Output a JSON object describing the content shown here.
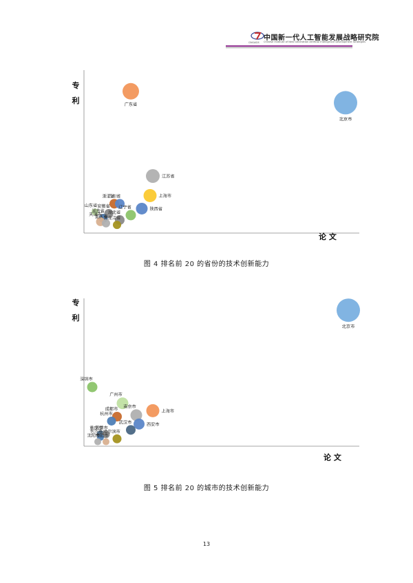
{
  "header": {
    "title": "中国新一代人工智能发展战略研究院",
    "subtitle": "Chinese Institute of New Generation Artificial Intelligence Development Strategies",
    "logo_text": "CINGAIDS"
  },
  "colors": {
    "blue": "#7ab0e0",
    "orange": "#f2965a",
    "gray": "#b0b0b0",
    "yellow": "#fbc92f",
    "green": "#8cc46a",
    "darkblue": "#4f7fb6",
    "midblue": "#5b86c8",
    "olive": "#a49220",
    "lightgreen": "#c0e0a2",
    "darkgray": "#8a8a8a",
    "darkorange": "#c76a2c",
    "tan": "#d8b090",
    "slate": "#4a6784"
  },
  "chart_data": [
    {
      "type": "scatter",
      "title": "",
      "xlabel": "论 文",
      "ylabel": "专利",
      "xlim": [
        0,
        100
      ],
      "ylim": [
        0,
        100
      ],
      "grid": false,
      "points": [
        {
          "name": "北京市",
          "x": 95,
          "y": 80,
          "size": 17,
          "color": "blue"
        },
        {
          "name": "广东省",
          "x": 17,
          "y": 87,
          "size": 12,
          "color": "orange"
        },
        {
          "name": "江苏省",
          "x": 25,
          "y": 35,
          "size": 10,
          "color": "gray"
        },
        {
          "name": "上海市",
          "x": 24,
          "y": 23,
          "size": 9.5,
          "color": "yellow"
        },
        {
          "name": "浙江省",
          "x": 11,
          "y": 18,
          "size": 7,
          "color": "darkorange"
        },
        {
          "name": "四川省",
          "x": 13,
          "y": 18,
          "size": 7,
          "color": "midblue"
        },
        {
          "name": "陕西省",
          "x": 21,
          "y": 15,
          "size": 8.5,
          "color": "midblue"
        },
        {
          "name": "山东省",
          "x": 4,
          "y": 13,
          "size": 5,
          "color": "lightgreen"
        },
        {
          "name": "安徽省",
          "x": 9,
          "y": 12,
          "size": 6.5,
          "color": "darkgray"
        },
        {
          "name": "辽宁省",
          "x": 17,
          "y": 11,
          "size": 7.5,
          "color": "green"
        },
        {
          "name": "湖南省",
          "x": 7,
          "y": 9,
          "size": 6.5,
          "color": "darkblue"
        },
        {
          "name": "天津市",
          "x": 6,
          "y": 7,
          "size": 6.5,
          "color": "tan"
        },
        {
          "name": "湖北省",
          "x": 13,
          "y": 8,
          "size": 7,
          "color": "darkgray"
        },
        {
          "name": "重庆市",
          "x": 8,
          "y": 6,
          "size": 6,
          "color": "gray"
        },
        {
          "name": "黑龙江省",
          "x": 12,
          "y": 5,
          "size": 6,
          "color": "olive"
        }
      ],
      "caption": "图 4   排名前 20 的省份的技术创新能力"
    },
    {
      "type": "scatter",
      "title": "",
      "xlabel": "论 文",
      "ylabel": "专利",
      "xlim": [
        0,
        100
      ],
      "ylim": [
        0,
        100
      ],
      "grid": false,
      "points": [
        {
          "name": "北京市",
          "x": 96,
          "y": 92,
          "size": 17,
          "color": "blue"
        },
        {
          "name": "深圳市",
          "x": 3,
          "y": 40,
          "size": 7.5,
          "color": "green"
        },
        {
          "name": "广州市",
          "x": 14,
          "y": 29,
          "size": 8.5,
          "color": "lightgreen"
        },
        {
          "name": "上海市",
          "x": 25,
          "y": 24,
          "size": 9.5,
          "color": "orange"
        },
        {
          "name": "成都市",
          "x": 12,
          "y": 20,
          "size": 7,
          "color": "darkorange"
        },
        {
          "name": "南京市",
          "x": 19,
          "y": 21,
          "size": 8.5,
          "color": "gray"
        },
        {
          "name": "杭州市",
          "x": 10,
          "y": 17,
          "size": 6.5,
          "color": "darkblue"
        },
        {
          "name": "西安市",
          "x": 20,
          "y": 15,
          "size": 8,
          "color": "midblue"
        },
        {
          "name": "武汉市",
          "x": 17,
          "y": 11,
          "size": 7,
          "color": "slate"
        },
        {
          "name": "重庆市",
          "x": 6,
          "y": 8,
          "size": 5.5,
          "color": "slate"
        },
        {
          "name": "天津市",
          "x": 8,
          "y": 8,
          "size": 5.5,
          "color": "darkgray"
        },
        {
          "name": "长沙市",
          "x": 6,
          "y": 6,
          "size": 5,
          "color": "darkblue"
        },
        {
          "name": "哈尔滨市",
          "x": 12,
          "y": 5,
          "size": 6.5,
          "color": "olive"
        },
        {
          "name": "沈阳市",
          "x": 5,
          "y": 3,
          "size": 5,
          "color": "gray"
        },
        {
          "name": "合肥市",
          "x": 8,
          "y": 3,
          "size": 5,
          "color": "tan"
        }
      ],
      "caption": "图 5   排名前 20 的城市的技术创新能力"
    }
  ],
  "page_number": "13"
}
